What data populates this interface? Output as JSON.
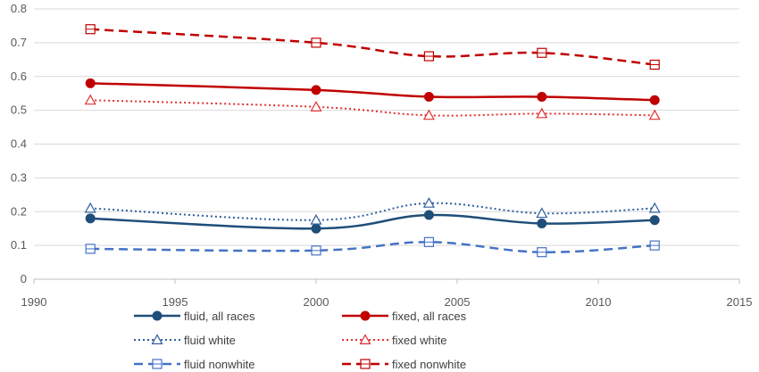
{
  "chart_data": {
    "type": "line",
    "title": "",
    "xlabel": "",
    "ylabel": "",
    "xlim": [
      1990,
      2015
    ],
    "ylim": [
      0,
      0.8
    ],
    "x_ticks": [
      "1990",
      "1995",
      "2000",
      "2005",
      "2010",
      "2015"
    ],
    "y_ticks": [
      "0",
      "0.1",
      "0.2",
      "0.3",
      "0.4",
      "0.5",
      "0.6",
      "0.7",
      "0.8"
    ],
    "grid": true,
    "legend_position": "bottom",
    "x": [
      1992,
      2000,
      2004,
      2008,
      2012
    ],
    "series": [
      {
        "name": "fluid, all races",
        "values": [
          0.18,
          0.15,
          0.19,
          0.165,
          0.175
        ],
        "color": "#1f4e79",
        "dash": "solid",
        "marker": "filled-circle"
      },
      {
        "name": "fixed, all races",
        "values": [
          0.58,
          0.56,
          0.54,
          0.54,
          0.53
        ],
        "color": "#c00000",
        "dash": "solid",
        "marker": "filled-circle"
      },
      {
        "name": "fluid white",
        "values": [
          0.21,
          0.175,
          0.225,
          0.195,
          0.21
        ],
        "color": "#2e5e9e",
        "dash": "dotted",
        "marker": "open-triangle"
      },
      {
        "name": "fixed white",
        "values": [
          0.53,
          0.51,
          0.485,
          0.49,
          0.485
        ],
        "color": "#e03030",
        "dash": "dotted",
        "marker": "open-triangle"
      },
      {
        "name": "fluid nonwhite",
        "values": [
          0.09,
          0.085,
          0.11,
          0.08,
          0.1
        ],
        "color": "#4472c4",
        "dash": "dashed",
        "marker": "open-square"
      },
      {
        "name": "fixed nonwhite",
        "values": [
          0.74,
          0.7,
          0.66,
          0.67,
          0.635
        ],
        "color": "#c00000",
        "dash": "dashed",
        "marker": "open-square"
      }
    ]
  }
}
